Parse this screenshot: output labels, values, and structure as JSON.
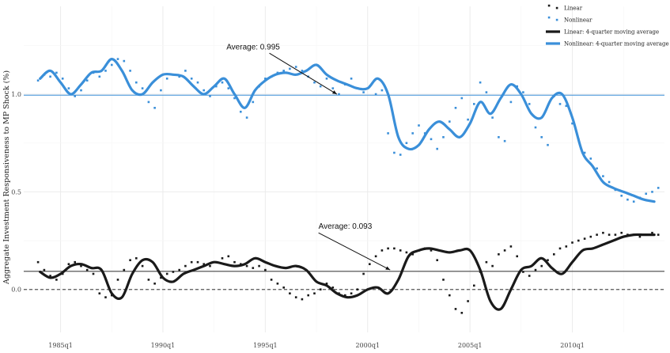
{
  "chart_data": {
    "type": "line",
    "title": "",
    "xlabel": "",
    "ylabel": "Aggregate Investment Responsiveness to MP Shock (%)",
    "xlim": [
      1983.2,
      2014.5
    ],
    "ylim": [
      -0.22,
      1.45
    ],
    "x_tick_labels": [
      "1985q1",
      "1990q1",
      "1995q1",
      "2000q1",
      "2005q1",
      "2010q1"
    ],
    "x_tick_values": [
      1985,
      1990,
      1995,
      2000,
      2005,
      2010
    ],
    "y_tick_labels": [
      "0.0",
      "0.5",
      "1.0"
    ],
    "y_tick_values": [
      0.0,
      0.5,
      1.0
    ],
    "grid": true,
    "legend_position": "top-right",
    "colors": {
      "linear": "#1a1a1a",
      "nonlinear": "#3a8fd9"
    },
    "reference_lines": [
      {
        "name": "Nonlinear average",
        "value": 0.995,
        "color": "#3a8fd9",
        "style": "solid"
      },
      {
        "name": "Linear average",
        "value": 0.093,
        "color": "#444444",
        "style": "solid"
      },
      {
        "name": "Zero",
        "value": 0.0,
        "color": "#555555",
        "style": "dashed"
      }
    ],
    "annotations": [
      {
        "text": "Average: 0.995",
        "label_x": 1993.1,
        "label_y": 1.23,
        "arrow_from": [
          1995.2,
          1.21
        ],
        "arrow_to": [
          1998.5,
          1.0
        ]
      },
      {
        "text": "Average: 0.093",
        "label_x": 1997.6,
        "label_y": 0.31,
        "arrow_from": [
          1997.6,
          0.29
        ],
        "arrow_to": [
          2001.1,
          0.1
        ]
      }
    ],
    "legend": [
      {
        "label": "Linear",
        "kind": "points",
        "series": "linear"
      },
      {
        "label": "Nonlinear",
        "kind": "points",
        "series": "nonlinear"
      },
      {
        "label": "Linear: 4-quarter moving average",
        "kind": "line",
        "series": "linear"
      },
      {
        "label": "Nonlinear: 4-quarter moving average",
        "kind": "line",
        "series": "nonlinear"
      }
    ],
    "series": [
      {
        "name": "Nonlinear: 4-quarter moving average",
        "kind": "line",
        "color_key": "nonlinear",
        "x": [
          1984.0,
          1984.5,
          1985.0,
          1985.5,
          1986.0,
          1986.5,
          1987.0,
          1987.5,
          1988.0,
          1988.5,
          1989.0,
          1989.5,
          1990.0,
          1990.5,
          1991.0,
          1991.5,
          1992.0,
          1992.5,
          1993.0,
          1993.5,
          1994.0,
          1994.5,
          1995.0,
          1995.5,
          1996.0,
          1996.5,
          1997.0,
          1997.5,
          1998.0,
          1998.5,
          1999.0,
          1999.5,
          2000.0,
          2000.5,
          2001.0,
          2001.5,
          2002.0,
          2002.5,
          2003.0,
          2003.5,
          2004.0,
          2004.5,
          2005.0,
          2005.5,
          2006.0,
          2006.5,
          2007.0,
          2007.5,
          2008.0,
          2008.5,
          2009.0,
          2009.5,
          2010.0,
          2010.5,
          2011.0,
          2011.5,
          2012.0,
          2012.5,
          2013.0,
          2013.5,
          2014.0
        ],
        "y": [
          1.08,
          1.12,
          1.06,
          1.0,
          1.05,
          1.11,
          1.12,
          1.18,
          1.12,
          1.02,
          1.0,
          1.06,
          1.1,
          1.1,
          1.09,
          1.04,
          1.0,
          1.04,
          1.08,
          1.0,
          0.93,
          1.02,
          1.07,
          1.1,
          1.11,
          1.1,
          1.12,
          1.15,
          1.1,
          1.07,
          1.05,
          1.03,
          1.03,
          1.08,
          1.0,
          0.78,
          0.72,
          0.74,
          0.82,
          0.86,
          0.82,
          0.78,
          0.85,
          0.96,
          0.9,
          0.98,
          1.05,
          1.0,
          0.9,
          0.88,
          0.98,
          1.0,
          0.88,
          0.7,
          0.63,
          0.55,
          0.52,
          0.5,
          0.48,
          0.46,
          0.45
        ]
      },
      {
        "name": "Linear: 4-quarter moving average",
        "kind": "line",
        "color_key": "linear",
        "x": [
          1984.0,
          1984.5,
          1985.0,
          1985.5,
          1986.0,
          1986.5,
          1987.0,
          1987.5,
          1988.0,
          1988.5,
          1989.0,
          1989.5,
          1990.0,
          1990.5,
          1991.0,
          1991.5,
          1992.0,
          1992.5,
          1993.0,
          1993.5,
          1994.0,
          1994.5,
          1995.0,
          1995.5,
          1996.0,
          1996.5,
          1997.0,
          1997.5,
          1998.0,
          1998.5,
          1999.0,
          1999.5,
          2000.0,
          2000.5,
          2001.0,
          2001.5,
          2002.0,
          2002.5,
          2003.0,
          2003.5,
          2004.0,
          2004.5,
          2005.0,
          2005.5,
          2006.0,
          2006.5,
          2007.0,
          2007.5,
          2008.0,
          2008.5,
          2009.0,
          2009.5,
          2010.0,
          2010.5,
          2011.0,
          2011.5,
          2012.0,
          2012.5,
          2013.0,
          2013.5,
          2014.0
        ],
        "y": [
          0.09,
          0.06,
          0.08,
          0.12,
          0.13,
          0.11,
          0.1,
          -0.02,
          -0.04,
          0.08,
          0.15,
          0.14,
          0.06,
          0.04,
          0.08,
          0.1,
          0.12,
          0.14,
          0.13,
          0.12,
          0.13,
          0.16,
          0.14,
          0.12,
          0.11,
          0.12,
          0.1,
          0.04,
          0.02,
          -0.02,
          -0.04,
          -0.03,
          0.0,
          0.01,
          -0.02,
          0.05,
          0.17,
          0.2,
          0.21,
          0.2,
          0.19,
          0.2,
          0.2,
          0.1,
          -0.06,
          -0.1,
          0.0,
          0.1,
          0.12,
          0.16,
          0.11,
          0.08,
          0.14,
          0.2,
          0.21,
          0.23,
          0.25,
          0.27,
          0.28,
          0.28,
          0.28
        ]
      },
      {
        "name": "Nonlinear",
        "kind": "points",
        "color_key": "nonlinear",
        "x": [
          1983.9,
          1984.2,
          1984.5,
          1984.8,
          1985.1,
          1985.4,
          1985.7,
          1986.0,
          1986.3,
          1986.6,
          1986.9,
          1987.2,
          1987.5,
          1987.8,
          1988.1,
          1988.4,
          1988.7,
          1989.0,
          1989.3,
          1989.6,
          1989.9,
          1990.2,
          1990.5,
          1990.8,
          1991.1,
          1991.4,
          1991.7,
          1992.0,
          1992.3,
          1992.6,
          1992.9,
          1993.2,
          1993.5,
          1993.8,
          1994.1,
          1994.4,
          1994.7,
          1995.0,
          1995.3,
          1995.6,
          1995.9,
          1996.2,
          1996.5,
          1996.8,
          1997.1,
          1997.4,
          1997.7,
          1998.0,
          1998.3,
          1998.6,
          1998.9,
          1999.2,
          1999.5,
          1999.8,
          2000.1,
          2000.4,
          2000.7,
          2001.0,
          2001.3,
          2001.6,
          2001.9,
          2002.2,
          2002.5,
          2002.8,
          2003.1,
          2003.4,
          2003.7,
          2004.0,
          2004.3,
          2004.6,
          2004.9,
          2005.2,
          2005.5,
          2005.8,
          2006.1,
          2006.4,
          2006.7,
          2007.0,
          2007.3,
          2007.6,
          2007.9,
          2008.2,
          2008.5,
          2008.8,
          2009.1,
          2009.4,
          2009.7,
          2010.0,
          2010.3,
          2010.6,
          2010.9,
          2011.2,
          2011.5,
          2011.8,
          2012.1,
          2012.4,
          2012.7,
          2013.0,
          2013.3,
          2013.6,
          2013.9,
          2014.2
        ],
        "y": [
          1.07,
          1.1,
          1.09,
          1.11,
          1.08,
          1.03,
          0.99,
          1.02,
          1.07,
          1.11,
          1.09,
          1.12,
          1.15,
          1.18,
          1.17,
          1.12,
          1.06,
          1.03,
          0.96,
          0.93,
          1.02,
          1.08,
          1.1,
          1.09,
          1.12,
          1.08,
          1.06,
          1.02,
          0.99,
          1.04,
          1.06,
          1.03,
          0.98,
          0.91,
          0.88,
          0.96,
          1.04,
          1.08,
          1.09,
          1.11,
          1.12,
          1.13,
          1.14,
          1.12,
          1.09,
          1.06,
          1.04,
          1.08,
          1.03,
          1.0,
          1.05,
          1.08,
          1.03,
          1.01,
          1.04,
          1.0,
          1.02,
          0.8,
          0.7,
          0.69,
          0.75,
          0.8,
          0.84,
          0.8,
          0.77,
          0.72,
          0.78,
          0.86,
          0.93,
          0.98,
          0.87,
          0.95,
          1.06,
          1.01,
          0.88,
          0.78,
          0.76,
          0.96,
          1.04,
          1.01,
          0.95,
          0.83,
          0.78,
          0.74,
          0.99,
          0.95,
          0.94,
          0.85,
          0.77,
          0.7,
          0.67,
          0.62,
          0.58,
          0.55,
          0.51,
          0.48,
          0.46,
          0.45,
          0.47,
          0.49,
          0.5,
          0.52
        ]
      },
      {
        "name": "Linear",
        "kind": "points",
        "color_key": "linear",
        "x": [
          1983.9,
          1984.2,
          1984.5,
          1984.8,
          1985.1,
          1985.4,
          1985.7,
          1986.0,
          1986.3,
          1986.6,
          1986.9,
          1987.2,
          1987.5,
          1987.8,
          1988.1,
          1988.4,
          1988.7,
          1989.0,
          1989.3,
          1989.6,
          1989.9,
          1990.2,
          1990.5,
          1990.8,
          1991.1,
          1991.4,
          1991.7,
          1992.0,
          1992.3,
          1992.6,
          1992.9,
          1993.2,
          1993.5,
          1993.8,
          1994.1,
          1994.4,
          1994.7,
          1995.0,
          1995.3,
          1995.6,
          1995.9,
          1996.2,
          1996.5,
          1996.8,
          1997.1,
          1997.4,
          1997.7,
          1998.0,
          1998.3,
          1998.6,
          1998.9,
          1999.2,
          1999.5,
          1999.8,
          2000.1,
          2000.4,
          2000.7,
          2001.0,
          2001.3,
          2001.6,
          2001.9,
          2002.2,
          2002.5,
          2002.8,
          2003.1,
          2003.4,
          2003.7,
          2004.0,
          2004.3,
          2004.6,
          2004.9,
          2005.2,
          2005.5,
          2005.8,
          2006.1,
          2006.4,
          2006.7,
          2007.0,
          2007.3,
          2007.6,
          2007.9,
          2008.2,
          2008.5,
          2008.8,
          2009.1,
          2009.4,
          2009.7,
          2010.0,
          2010.3,
          2010.6,
          2010.9,
          2011.2,
          2011.5,
          2011.8,
          2012.1,
          2012.4,
          2012.7,
          2013.0,
          2013.3,
          2013.6,
          2013.9,
          2014.2
        ],
        "y": [
          0.14,
          0.1,
          0.07,
          0.05,
          0.08,
          0.13,
          0.14,
          0.12,
          0.1,
          0.08,
          -0.02,
          -0.04,
          -0.03,
          0.05,
          0.1,
          0.15,
          0.16,
          0.12,
          0.05,
          0.03,
          0.06,
          0.08,
          0.09,
          0.1,
          0.12,
          0.14,
          0.14,
          0.13,
          0.12,
          0.14,
          0.16,
          0.17,
          0.14,
          0.13,
          0.12,
          0.11,
          0.12,
          0.1,
          0.05,
          0.03,
          0.01,
          -0.02,
          -0.04,
          -0.05,
          -0.03,
          -0.02,
          0.0,
          0.03,
          0.01,
          -0.02,
          -0.03,
          -0.02,
          0.0,
          0.08,
          0.13,
          0.17,
          0.2,
          0.21,
          0.21,
          0.2,
          0.19,
          0.18,
          0.2,
          0.21,
          0.2,
          0.15,
          0.05,
          -0.03,
          -0.1,
          -0.12,
          -0.06,
          0.02,
          0.09,
          0.14,
          0.12,
          0.18,
          0.2,
          0.22,
          0.17,
          0.09,
          0.07,
          0.1,
          0.12,
          0.15,
          0.18,
          0.21,
          0.22,
          0.24,
          0.25,
          0.26,
          0.27,
          0.28,
          0.29,
          0.28,
          0.28,
          0.29,
          0.28,
          0.28,
          0.27,
          0.28,
          0.29,
          0.28
        ]
      }
    ]
  }
}
